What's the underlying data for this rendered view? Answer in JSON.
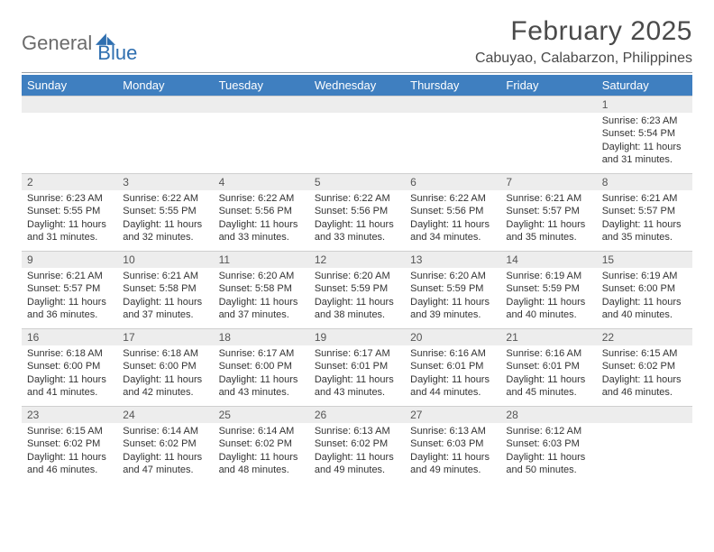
{
  "logo": {
    "text1": "General",
    "text2": "Blue"
  },
  "title": "February 2025",
  "location": "Cabuyao, Calabarzon, Philippines",
  "colors": {
    "header_bg": "#3f7fc0",
    "header_text": "#ffffff",
    "daynum_bg": "#ededed",
    "body_text": "#333333",
    "logo_gray": "#6b6b6b",
    "logo_blue": "#2f6fb0"
  },
  "weekdays": [
    "Sunday",
    "Monday",
    "Tuesday",
    "Wednesday",
    "Thursday",
    "Friday",
    "Saturday"
  ],
  "weeks": [
    [
      {
        "day": "",
        "lines": []
      },
      {
        "day": "",
        "lines": []
      },
      {
        "day": "",
        "lines": []
      },
      {
        "day": "",
        "lines": []
      },
      {
        "day": "",
        "lines": []
      },
      {
        "day": "",
        "lines": []
      },
      {
        "day": "1",
        "lines": [
          "Sunrise: 6:23 AM",
          "Sunset: 5:54 PM",
          "Daylight: 11 hours and 31 minutes."
        ]
      }
    ],
    [
      {
        "day": "2",
        "lines": [
          "Sunrise: 6:23 AM",
          "Sunset: 5:55 PM",
          "Daylight: 11 hours and 31 minutes."
        ]
      },
      {
        "day": "3",
        "lines": [
          "Sunrise: 6:22 AM",
          "Sunset: 5:55 PM",
          "Daylight: 11 hours and 32 minutes."
        ]
      },
      {
        "day": "4",
        "lines": [
          "Sunrise: 6:22 AM",
          "Sunset: 5:56 PM",
          "Daylight: 11 hours and 33 minutes."
        ]
      },
      {
        "day": "5",
        "lines": [
          "Sunrise: 6:22 AM",
          "Sunset: 5:56 PM",
          "Daylight: 11 hours and 33 minutes."
        ]
      },
      {
        "day": "6",
        "lines": [
          "Sunrise: 6:22 AM",
          "Sunset: 5:56 PM",
          "Daylight: 11 hours and 34 minutes."
        ]
      },
      {
        "day": "7",
        "lines": [
          "Sunrise: 6:21 AM",
          "Sunset: 5:57 PM",
          "Daylight: 11 hours and 35 minutes."
        ]
      },
      {
        "day": "8",
        "lines": [
          "Sunrise: 6:21 AM",
          "Sunset: 5:57 PM",
          "Daylight: 11 hours and 35 minutes."
        ]
      }
    ],
    [
      {
        "day": "9",
        "lines": [
          "Sunrise: 6:21 AM",
          "Sunset: 5:57 PM",
          "Daylight: 11 hours and 36 minutes."
        ]
      },
      {
        "day": "10",
        "lines": [
          "Sunrise: 6:21 AM",
          "Sunset: 5:58 PM",
          "Daylight: 11 hours and 37 minutes."
        ]
      },
      {
        "day": "11",
        "lines": [
          "Sunrise: 6:20 AM",
          "Sunset: 5:58 PM",
          "Daylight: 11 hours and 37 minutes."
        ]
      },
      {
        "day": "12",
        "lines": [
          "Sunrise: 6:20 AM",
          "Sunset: 5:59 PM",
          "Daylight: 11 hours and 38 minutes."
        ]
      },
      {
        "day": "13",
        "lines": [
          "Sunrise: 6:20 AM",
          "Sunset: 5:59 PM",
          "Daylight: 11 hours and 39 minutes."
        ]
      },
      {
        "day": "14",
        "lines": [
          "Sunrise: 6:19 AM",
          "Sunset: 5:59 PM",
          "Daylight: 11 hours and 40 minutes."
        ]
      },
      {
        "day": "15",
        "lines": [
          "Sunrise: 6:19 AM",
          "Sunset: 6:00 PM",
          "Daylight: 11 hours and 40 minutes."
        ]
      }
    ],
    [
      {
        "day": "16",
        "lines": [
          "Sunrise: 6:18 AM",
          "Sunset: 6:00 PM",
          "Daylight: 11 hours and 41 minutes."
        ]
      },
      {
        "day": "17",
        "lines": [
          "Sunrise: 6:18 AM",
          "Sunset: 6:00 PM",
          "Daylight: 11 hours and 42 minutes."
        ]
      },
      {
        "day": "18",
        "lines": [
          "Sunrise: 6:17 AM",
          "Sunset: 6:00 PM",
          "Daylight: 11 hours and 43 minutes."
        ]
      },
      {
        "day": "19",
        "lines": [
          "Sunrise: 6:17 AM",
          "Sunset: 6:01 PM",
          "Daylight: 11 hours and 43 minutes."
        ]
      },
      {
        "day": "20",
        "lines": [
          "Sunrise: 6:16 AM",
          "Sunset: 6:01 PM",
          "Daylight: 11 hours and 44 minutes."
        ]
      },
      {
        "day": "21",
        "lines": [
          "Sunrise: 6:16 AM",
          "Sunset: 6:01 PM",
          "Daylight: 11 hours and 45 minutes."
        ]
      },
      {
        "day": "22",
        "lines": [
          "Sunrise: 6:15 AM",
          "Sunset: 6:02 PM",
          "Daylight: 11 hours and 46 minutes."
        ]
      }
    ],
    [
      {
        "day": "23",
        "lines": [
          "Sunrise: 6:15 AM",
          "Sunset: 6:02 PM",
          "Daylight: 11 hours and 46 minutes."
        ]
      },
      {
        "day": "24",
        "lines": [
          "Sunrise: 6:14 AM",
          "Sunset: 6:02 PM",
          "Daylight: 11 hours and 47 minutes."
        ]
      },
      {
        "day": "25",
        "lines": [
          "Sunrise: 6:14 AM",
          "Sunset: 6:02 PM",
          "Daylight: 11 hours and 48 minutes."
        ]
      },
      {
        "day": "26",
        "lines": [
          "Sunrise: 6:13 AM",
          "Sunset: 6:02 PM",
          "Daylight: 11 hours and 49 minutes."
        ]
      },
      {
        "day": "27",
        "lines": [
          "Sunrise: 6:13 AM",
          "Sunset: 6:03 PM",
          "Daylight: 11 hours and 49 minutes."
        ]
      },
      {
        "day": "28",
        "lines": [
          "Sunrise: 6:12 AM",
          "Sunset: 6:03 PM",
          "Daylight: 11 hours and 50 minutes."
        ]
      },
      {
        "day": "",
        "lines": []
      }
    ]
  ]
}
